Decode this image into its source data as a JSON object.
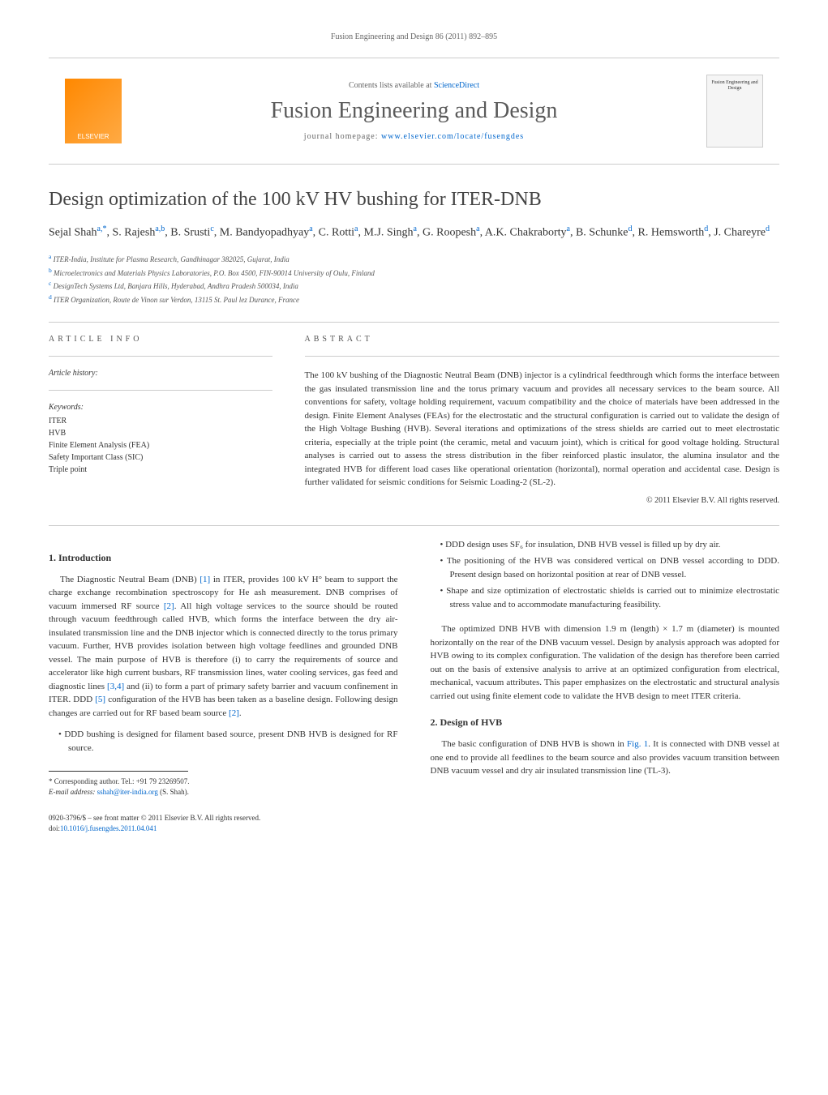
{
  "header_bar": "Fusion Engineering and Design 86 (2011) 892–895",
  "contents": {
    "lists_text": "Contents lists available at ",
    "lists_link": "ScienceDirect",
    "journal_name": "Fusion Engineering and Design",
    "homepage_label": "journal homepage: ",
    "homepage_url": "www.elsevier.com/locate/fusengdes",
    "elsevier_label": "ELSEVIER",
    "cover_label": "Fusion Engineering and Design"
  },
  "title": "Design optimization of the 100 kV HV bushing for ITER-DNB",
  "authors_html": "Sejal Shah<sup>a,*</sup>, S. Rajesh<sup>a,b</sup>, B. Srusti<sup>c</sup>, M. Bandyopadhyay<sup>a</sup>, C. Rotti<sup>a</sup>, M.J. Singh<sup>a</sup>, G. Roopesh<sup>a</sup>, A.K. Chakraborty<sup>a</sup>, B. Schunke<sup>d</sup>, R. Hemsworth<sup>d</sup>, J. Chareyre<sup>d</sup>",
  "affiliations": [
    {
      "sup": "a",
      "text": "ITER-India, Institute for Plasma Research, Gandhinagar 382025, Gujarat, India"
    },
    {
      "sup": "b",
      "text": "Microelectronics and Materials Physics Laboratories, P.O. Box 4500, FIN-90014 University of Oulu, Finland"
    },
    {
      "sup": "c",
      "text": "DesignTech Systems Ltd, Banjara Hills, Hyderabad, Andhra Pradesh 500034, India"
    },
    {
      "sup": "d",
      "text": "ITER Organization, Route de Vinon sur Verdon, 13115 St. Paul lez Durance, France"
    }
  ],
  "article_info": {
    "heading": "ARTICLE INFO",
    "history_label": "Article history:",
    "keywords_label": "Keywords:",
    "keywords": [
      "ITER",
      "HVB",
      "Finite Element Analysis (FEA)",
      "Safety Important Class (SIC)",
      "Triple point"
    ]
  },
  "abstract": {
    "heading": "ABSTRACT",
    "text": "The 100 kV bushing of the Diagnostic Neutral Beam (DNB) injector is a cylindrical feedthrough which forms the interface between the gas insulated transmission line and the torus primary vacuum and provides all necessary services to the beam source. All conventions for safety, voltage holding requirement, vacuum compatibility and the choice of materials have been addressed in the design. Finite Element Analyses (FEAs) for the electrostatic and the structural configuration is carried out to validate the design of the High Voltage Bushing (HVB). Several iterations and optimizations of the stress shields are carried out to meet electrostatic criteria, especially at the triple point (the ceramic, metal and vacuum joint), which is critical for good voltage holding. Structural analyses is carried out to assess the stress distribution in the fiber reinforced plastic insulator, the alumina insulator and the integrated HVB for different load cases like operational orientation (horizontal), normal operation and accidental case. Design is further validated for seismic conditions for Seismic Loading-2 (SL-2).",
    "copyright": "© 2011 Elsevier B.V. All rights reserved."
  },
  "body": {
    "left": {
      "heading1": "1. Introduction",
      "para1": "The Diagnostic Neutral Beam (DNB) [1] in ITER, provides 100 kV H° beam to support the charge exchange recombination spectroscopy for He ash measurement. DNB comprises of vacuum immersed RF source [2]. All high voltage services to the source should be routed through vacuum feedthrough called HVB, which forms the interface between the dry air-insulated transmission line and the DNB injector which is connected directly to the torus primary vacuum. Further, HVB provides isolation between high voltage feedlines and grounded DNB vessel. The main purpose of HVB is therefore (i) to carry the requirements of source and accelerator like high current busbars, RF transmission lines, water cooling services, gas feed and diagnostic lines [3,4] and (ii) to form a part of primary safety barrier and vacuum confinement in ITER. DDD [5] configuration of the HVB has been taken as a baseline design. Following design changes are carried out for RF based beam source [2].",
      "bullet1": "DDD bushing is designed for filament based source, present DNB HVB is designed for RF source.",
      "footnote_label": "* Corresponding author. Tel.: +91 79 23269507.",
      "footnote_email_label": "E-mail address: ",
      "footnote_email": "sshah@iter-india.org",
      "footnote_name": " (S. Shah)."
    },
    "right": {
      "bullets": [
        "DDD design uses SF₆ for insulation, DNB HVB vessel is filled up by dry air.",
        "The positioning of the HVB was considered vertical on DNB vessel according to DDD. Present design based on horizontal position at rear of DNB vessel.",
        "Shape and size optimization of electrostatic shields is carried out to minimize electrostatic stress value and to accommodate manufacturing feasibility."
      ],
      "para_after": "The optimized DNB HVB with dimension 1.9 m (length) × 1.7 m (diameter) is mounted horizontally on the rear of the DNB vacuum vessel. Design by analysis approach was adopted for HVB owing to its complex configuration. The validation of the design has therefore been carried out on the basis of extensive analysis to arrive at an optimized configuration from electrical, mechanical, vacuum attributes. This paper emphasizes on the electrostatic and structural analysis carried out using finite element code to validate the HVB design to meet ITER criteria.",
      "heading2": "2. Design of HVB",
      "para2": "The basic configuration of DNB HVB is shown in Fig. 1. It is connected with DNB vessel at one end to provide all feedlines to the beam source and also provides vacuum transition between DNB vacuum vessel and dry air insulated transmission line (TL-3)."
    }
  },
  "footer": {
    "line1": "0920-3796/$ – see front matter © 2011 Elsevier B.V. All rights reserved.",
    "doi_label": "doi:",
    "doi": "10.1016/j.fusengdes.2011.04.041"
  },
  "colors": {
    "link": "#0066cc",
    "text": "#333333",
    "muted": "#666666",
    "border": "#cccccc",
    "elsevier_orange": "#ff8800"
  },
  "typography": {
    "body_fontsize": 11,
    "title_fontsize": 24,
    "journal_fontsize": 28,
    "small_fontsize": 10,
    "tiny_fontsize": 9
  }
}
